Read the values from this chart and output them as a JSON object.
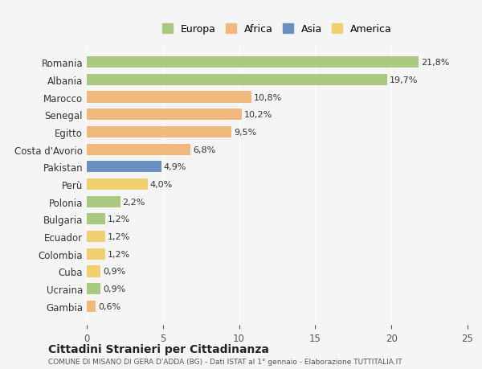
{
  "countries": [
    "Romania",
    "Albania",
    "Marocco",
    "Senegal",
    "Egitto",
    "Costa d'Avorio",
    "Pakistan",
    "Perù",
    "Polonia",
    "Bulgaria",
    "Ecuador",
    "Colombia",
    "Cuba",
    "Ucraina",
    "Gambia"
  ],
  "values": [
    21.8,
    19.7,
    10.8,
    10.2,
    9.5,
    6.8,
    4.9,
    4.0,
    2.2,
    1.2,
    1.2,
    1.2,
    0.9,
    0.9,
    0.6
  ],
  "labels": [
    "21,8%",
    "19,7%",
    "10,8%",
    "10,2%",
    "9,5%",
    "6,8%",
    "4,9%",
    "4,0%",
    "2,2%",
    "1,2%",
    "1,2%",
    "1,2%",
    "0,9%",
    "0,9%",
    "0,6%"
  ],
  "continents": [
    "Europa",
    "Europa",
    "Africa",
    "Africa",
    "Africa",
    "Africa",
    "Asia",
    "America",
    "Europa",
    "Europa",
    "America",
    "America",
    "America",
    "Europa",
    "Africa"
  ],
  "colors": {
    "Europa": "#a8c97f",
    "Africa": "#f0b87a",
    "Asia": "#6b8fbf",
    "America": "#f0d070"
  },
  "background_color": "#f5f5f5",
  "title": "Cittadini Stranieri per Cittadinanza",
  "subtitle": "COMUNE DI MISANO DI GERA D'ADDA (BG) - Dati ISTAT al 1° gennaio - Elaborazione TUTTITALIA.IT",
  "xlim": [
    0,
    25
  ],
  "xticks": [
    0,
    5,
    10,
    15,
    20,
    25
  ],
  "bar_height": 0.65,
  "legend_order": [
    "Europa",
    "Africa",
    "Asia",
    "America"
  ]
}
